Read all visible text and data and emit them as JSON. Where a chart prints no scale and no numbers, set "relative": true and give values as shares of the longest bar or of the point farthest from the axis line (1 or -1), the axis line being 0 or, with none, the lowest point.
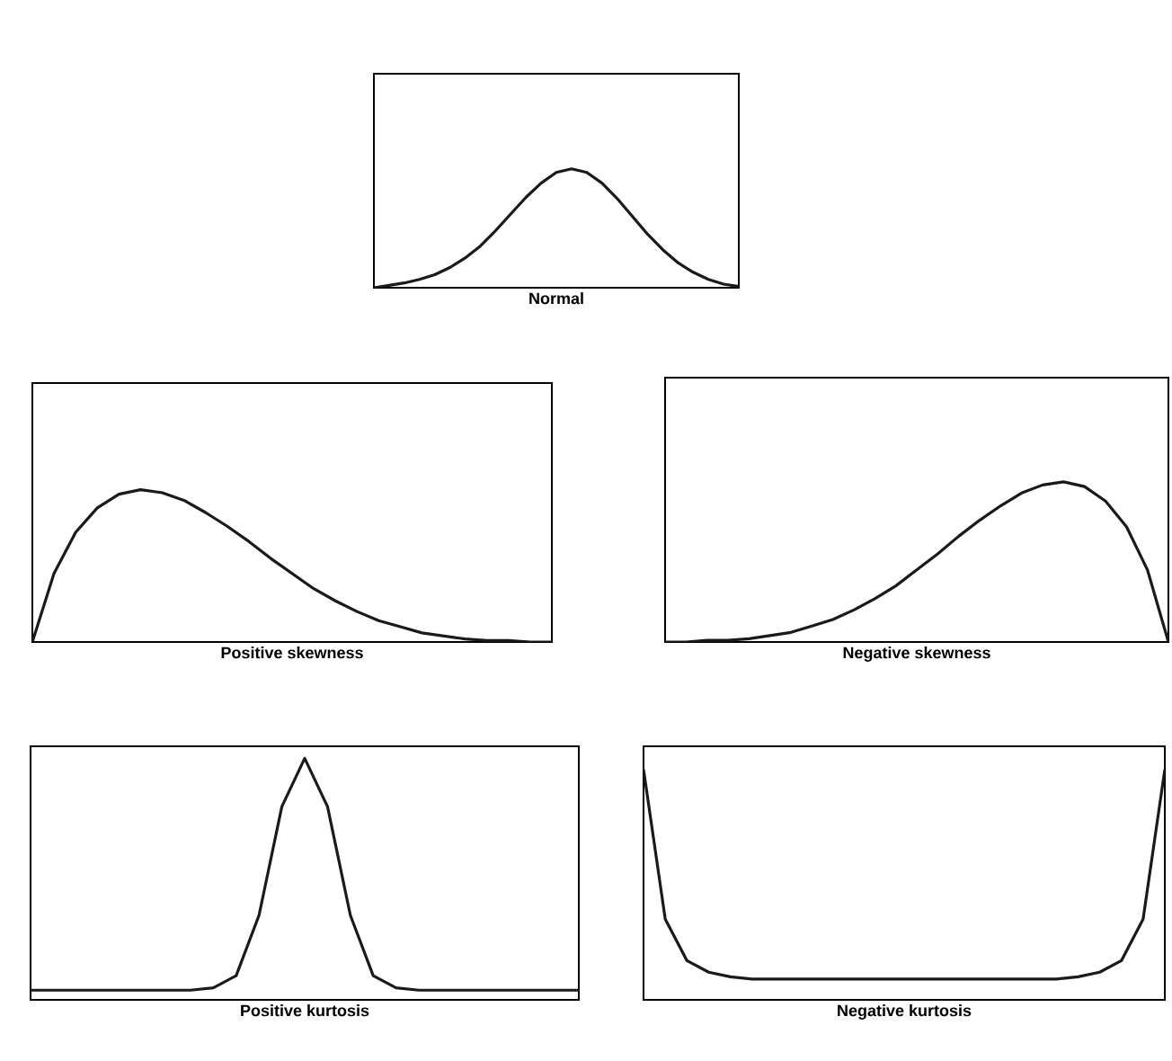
{
  "chart_data": [
    {
      "type": "line",
      "title": "Normal",
      "relative": true,
      "color": "#1a1a1a",
      "categories": [
        null,
        null,
        null,
        null,
        null,
        null,
        null,
        null,
        null,
        null,
        null,
        null,
        null,
        null,
        null,
        null,
        null,
        null,
        null,
        null,
        null,
        null,
        null,
        null,
        null
      ],
      "values": [
        0,
        0.02,
        0.04,
        0.07,
        0.11,
        0.17,
        0.25,
        0.35,
        0.48,
        0.62,
        0.76,
        0.88,
        0.97,
        1,
        0.97,
        0.88,
        0.75,
        0.6,
        0.45,
        0.32,
        0.21,
        0.13,
        0.07,
        0.03,
        0.01
      ]
    },
    {
      "type": "line",
      "title": "Positive skewness",
      "relative": true,
      "color": "#1a1a1a",
      "categories": [
        null,
        null,
        null,
        null,
        null,
        null,
        null,
        null,
        null,
        null,
        null,
        null,
        null,
        null,
        null,
        null,
        null,
        null,
        null,
        null,
        null,
        null,
        null,
        null,
        null
      ],
      "values": [
        0,
        0.45,
        0.72,
        0.88,
        0.97,
        1,
        0.98,
        0.93,
        0.85,
        0.76,
        0.66,
        0.55,
        0.45,
        0.35,
        0.27,
        0.2,
        0.14,
        0.1,
        0.06,
        0.04,
        0.02,
        0.01,
        0.01,
        0,
        0
      ]
    },
    {
      "type": "line",
      "title": "Negative skewness",
      "relative": true,
      "color": "#1a1a1a",
      "categories": [
        null,
        null,
        null,
        null,
        null,
        null,
        null,
        null,
        null,
        null,
        null,
        null,
        null,
        null,
        null,
        null,
        null,
        null,
        null,
        null,
        null,
        null,
        null,
        null,
        null
      ],
      "values": [
        0,
        0,
        0.01,
        0.01,
        0.02,
        0.04,
        0.06,
        0.1,
        0.14,
        0.2,
        0.27,
        0.35,
        0.45,
        0.55,
        0.66,
        0.76,
        0.85,
        0.93,
        0.98,
        1,
        0.97,
        0.88,
        0.72,
        0.45,
        0
      ]
    },
    {
      "type": "line",
      "title": "Positive kurtosis",
      "relative": true,
      "color": "#1a1a1a",
      "categories": [
        null,
        null,
        null,
        null,
        null,
        null,
        null,
        null,
        null,
        null,
        null,
        null,
        null,
        null,
        null,
        null,
        null,
        null,
        null,
        null,
        null,
        null,
        null,
        null,
        null
      ],
      "values": [
        0.04,
        0.04,
        0.04,
        0.04,
        0.04,
        0.04,
        0.04,
        0.04,
        0.05,
        0.1,
        0.35,
        0.8,
        1,
        0.8,
        0.35,
        0.1,
        0.05,
        0.04,
        0.04,
        0.04,
        0.04,
        0.04,
        0.04,
        0.04,
        0.04
      ]
    },
    {
      "type": "line",
      "title": "Negative kurtosis",
      "relative": true,
      "color": "#1a1a1a",
      "categories": [
        null,
        null,
        null,
        null,
        null,
        null,
        null,
        null,
        null,
        null,
        null,
        null,
        null,
        null,
        null,
        null,
        null,
        null,
        null,
        null,
        null,
        null,
        null,
        null,
        null
      ],
      "values": [
        1,
        0.35,
        0.17,
        0.12,
        0.1,
        0.09,
        0.09,
        0.09,
        0.09,
        0.09,
        0.09,
        0.09,
        0.09,
        0.09,
        0.09,
        0.09,
        0.09,
        0.09,
        0.09,
        0.09,
        0.1,
        0.12,
        0.17,
        0.35,
        1
      ]
    }
  ]
}
